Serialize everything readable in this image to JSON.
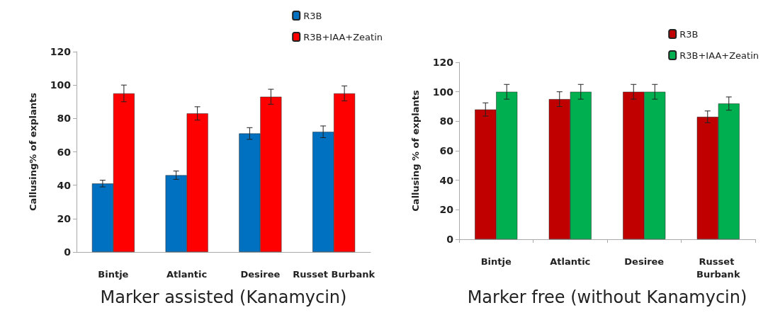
{
  "chart_data": [
    {
      "type": "bar",
      "xlabel": "Marker assisted (Kanamycin)",
      "ylabel": "Callusing% of explants",
      "categories": [
        "Bintje",
        "Atlantic",
        "Desiree",
        "Russet Burbank"
      ],
      "ylim": [
        0,
        120
      ],
      "yticks": [
        0,
        20,
        40,
        60,
        80,
        100,
        120
      ],
      "grid": false,
      "legend": "top right",
      "series": [
        {
          "name": "R3B",
          "color": "#0070c0",
          "values": [
            41,
            46,
            71,
            72
          ],
          "errors": [
            2,
            2.5,
            3.5,
            3.5
          ]
        },
        {
          "name": "R3B+IAA+Zeatin",
          "color": "#ff0000",
          "values": [
            95,
            83,
            93,
            95
          ],
          "errors": [
            5,
            4,
            4.5,
            4.5
          ]
        }
      ]
    },
    {
      "type": "bar",
      "xlabel": "Marker free (without Kanamycin)",
      "ylabel": "Callusing % of explants",
      "categories": [
        "Bintje",
        "Atlantic",
        "Desiree",
        "Russet Burbank"
      ],
      "ylim": [
        0,
        120
      ],
      "yticks": [
        0,
        20,
        40,
        60,
        80,
        100,
        120
      ],
      "grid": false,
      "legend": "top right",
      "series": [
        {
          "name": "R3B",
          "color": "#c00000",
          "values": [
            88,
            95,
            100,
            83
          ],
          "errors": [
            4.5,
            5,
            5,
            4
          ]
        },
        {
          "name": "R3B+IAA+Zeatin",
          "color": "#00b050",
          "values": [
            100,
            100,
            100,
            92
          ],
          "errors": [
            5,
            5,
            5,
            4.5
          ]
        }
      ]
    }
  ]
}
